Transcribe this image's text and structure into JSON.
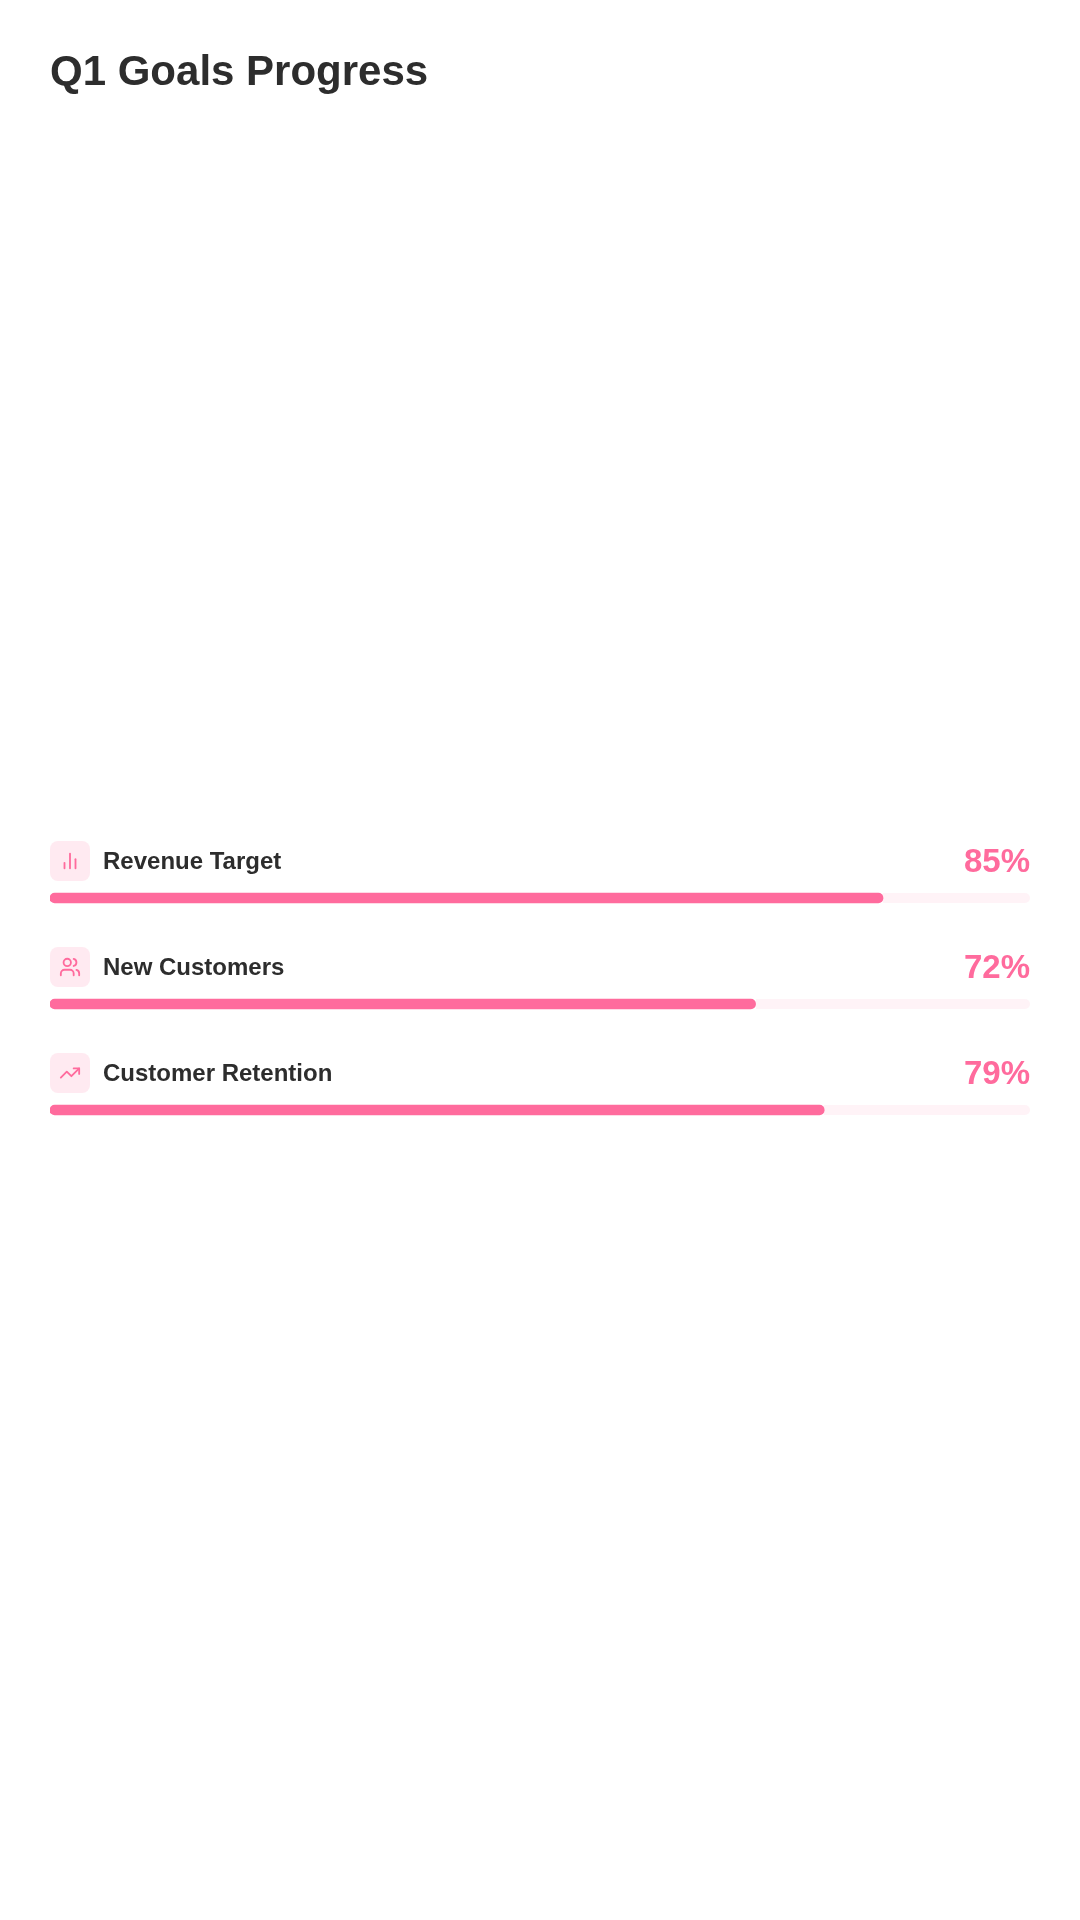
{
  "chart_data": {
    "type": "bar",
    "orientation": "horizontal",
    "title": "Q1 Goals Progress",
    "categories": [
      "Revenue Target",
      "New Customers",
      "Customer Retention"
    ],
    "values": [
      85,
      72,
      79
    ],
    "value_labels": [
      "85%",
      "72%",
      "79%"
    ],
    "color": "#ff6b9d",
    "xlim": [
      0,
      100
    ],
    "tick_labels": "y"
  }
}
